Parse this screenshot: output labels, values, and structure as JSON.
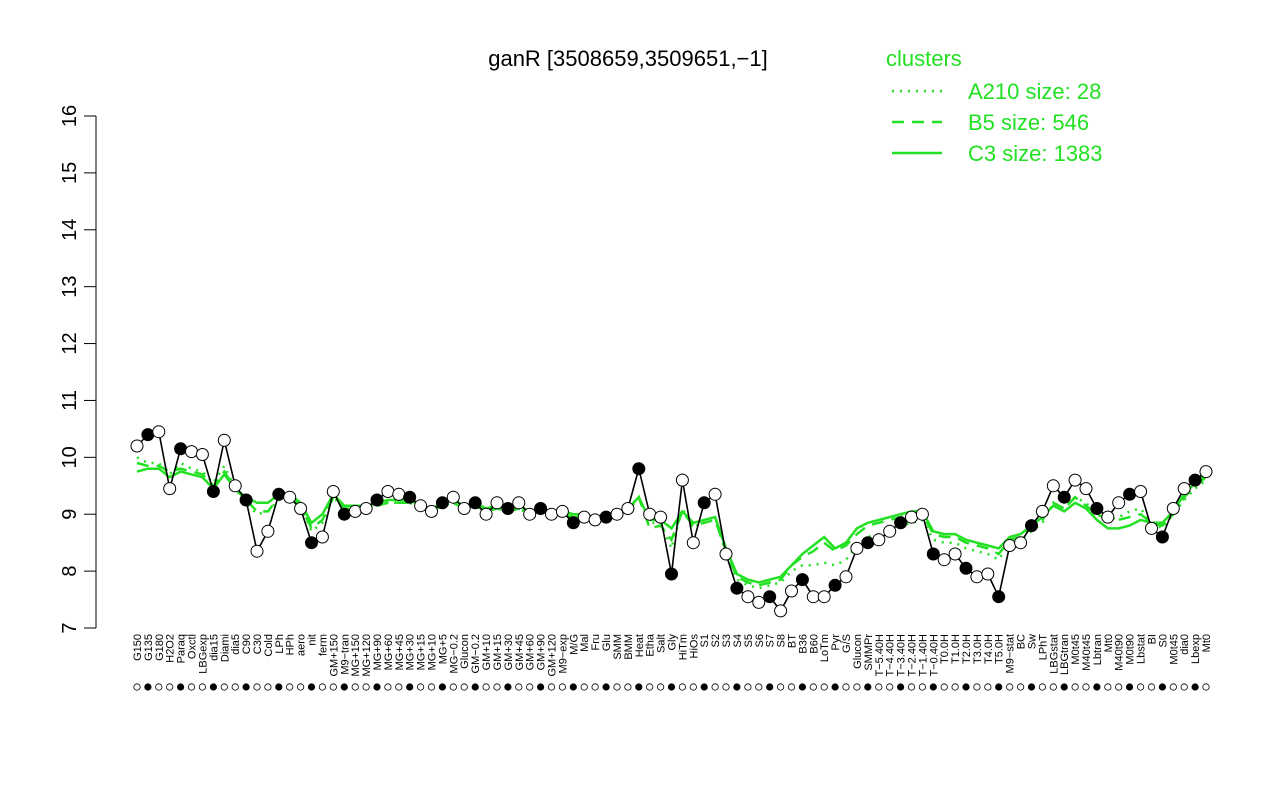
{
  "chart_data": {
    "type": "line",
    "title": "ganR [3508659,3509651,−1]",
    "xlabel": "",
    "ylabel": "",
    "ylim": [
      7,
      16
    ],
    "yticks": [
      7,
      8,
      9,
      10,
      11,
      12,
      13,
      14,
      15,
      16
    ],
    "grid": false,
    "legend": {
      "title": "clusters",
      "placement": "top-right",
      "entries": [
        {
          "label": "A210 size: 28",
          "style": "dotted"
        },
        {
          "label": "B5 size: 546",
          "style": "dashed"
        },
        {
          "label": "C3 size: 1383",
          "style": "solid"
        }
      ]
    },
    "colors": {
      "clusters": "#22e022",
      "gene_line": "#000000",
      "point_fill_a": "#ffffff",
      "point_fill_b": "#000000"
    },
    "x_labels": [
      "G150",
      "G135",
      "G180",
      "H2O2",
      "Paraq",
      "Oxctl",
      "LBGexp",
      "dia15",
      "Diami",
      "dia5",
      "C90",
      "C30",
      "Cold",
      "LPh",
      "HPh",
      "aero",
      "nit",
      "ferm",
      "GM+150",
      "M9−tran",
      "MG+150",
      "MG+120",
      "MG+90",
      "MG+60",
      "MG+45",
      "MG+30",
      "MG+15",
      "MG+10",
      "MG+5",
      "MG−0.2",
      "Glucon",
      "GM−0.2",
      "GM+10",
      "GM+15",
      "GM+30",
      "GM+45",
      "GM+60",
      "GM+90",
      "GM+120",
      "M9−exp",
      "M/G",
      "Mal",
      "Fru",
      "Glu",
      "SMM",
      "BMM",
      "Heat",
      "Etha",
      "Salt",
      "Gly",
      "HiTm",
      "HiOs",
      "S1",
      "S2",
      "S3",
      "S4",
      "S5",
      "S6",
      "S7",
      "S8",
      "BT",
      "B36",
      "B60",
      "LoTm",
      "Pyr",
      "G/S",
      "Glucon",
      "SMMPr",
      "T−5.40H",
      "T−4.40H",
      "T−3.40H",
      "T−2.40H",
      "T−1.40H",
      "T−0.40H",
      "T0.0H",
      "T1.0H",
      "T2.0H",
      "T3.0H",
      "T4.0H",
      "T5.0H",
      "M9−stat",
      "BC",
      "Sw",
      "LPhT",
      "LBGstat",
      "LBGtran",
      "M0t45",
      "M40t45",
      "Lbtran",
      "Mt0",
      "M40t90",
      "M0t90",
      "Lbstat",
      "BI",
      "S0",
      "M0t45",
      "dia0",
      "Lbexp",
      "Mt0"
    ],
    "series": [
      {
        "values": [
          10.2,
          10.4,
          10.45,
          9.45,
          10.15,
          10.1,
          10.05,
          9.4,
          10.3,
          9.5,
          9.25,
          8.35,
          8.7,
          9.35,
          9.3,
          9.1,
          8.5,
          8.6,
          9.4,
          9.0,
          9.05,
          9.1,
          9.25,
          9.4,
          9.35,
          9.3,
          9.15,
          9.05,
          9.2,
          9.3,
          9.1,
          9.2,
          9.0,
          9.2,
          9.1,
          9.2,
          9.0,
          9.1,
          9.0,
          9.05,
          8.85,
          8.95,
          8.9,
          8.95,
          9.0,
          9.1,
          9.8,
          9.0,
          8.95,
          7.95,
          9.6,
          8.5,
          9.2,
          9.35,
          8.3,
          7.7,
          7.55,
          7.45,
          7.55,
          7.3,
          7.65,
          7.85,
          7.55,
          7.55,
          7.75,
          7.9,
          8.4,
          8.5,
          8.55,
          8.7,
          8.85,
          8.95,
          9.0,
          8.3,
          8.2,
          8.3,
          8.05,
          7.9,
          7.95,
          7.55,
          8.45,
          8.5,
          8.8,
          9.05,
          9.5,
          9.3,
          9.6,
          9.45,
          9.1,
          8.95,
          9.2,
          9.35,
          9.4,
          8.75,
          8.6,
          9.1,
          9.45,
          9.6,
          9.75
        ]
      }
    ],
    "clusters": [
      {
        "label": "A210 size: 28",
        "values": [
          10.0,
          9.9,
          9.9,
          9.7,
          9.9,
          9.8,
          9.75,
          9.55,
          9.85,
          9.45,
          9.2,
          9.0,
          9.05,
          9.25,
          9.25,
          9.15,
          8.7,
          8.85,
          9.3,
          9.1,
          9.05,
          9.1,
          9.15,
          9.2,
          9.2,
          9.2,
          9.1,
          9.05,
          9.15,
          9.2,
          9.1,
          9.15,
          9.05,
          9.1,
          9.05,
          9.1,
          9.0,
          9.05,
          9.0,
          9.0,
          8.9,
          8.95,
          8.9,
          8.95,
          8.95,
          9.05,
          9.3,
          8.85,
          8.85,
          8.4,
          9.1,
          8.75,
          8.9,
          8.95,
          8.3,
          7.85,
          7.75,
          7.7,
          7.75,
          7.8,
          8.0,
          8.1,
          8.1,
          8.15,
          8.1,
          8.2,
          8.45,
          8.6,
          8.65,
          8.7,
          8.8,
          8.85,
          8.9,
          8.55,
          8.5,
          8.5,
          8.4,
          8.35,
          8.3,
          8.2,
          8.5,
          8.55,
          8.7,
          8.85,
          9.2,
          9.1,
          9.3,
          9.2,
          9.0,
          8.9,
          8.95,
          9.05,
          9.1,
          8.85,
          8.75,
          9.0,
          9.25,
          9.45,
          9.6
        ]
      },
      {
        "label": "B5 size: 546",
        "values": [
          9.9,
          9.85,
          9.85,
          9.75,
          9.8,
          9.75,
          9.7,
          9.5,
          9.75,
          9.45,
          9.25,
          9.05,
          9.05,
          9.3,
          9.3,
          9.15,
          8.75,
          8.9,
          9.3,
          9.1,
          9.1,
          9.1,
          9.15,
          9.2,
          9.2,
          9.2,
          9.1,
          9.05,
          9.15,
          9.2,
          9.1,
          9.15,
          9.05,
          9.1,
          9.05,
          9.1,
          9.0,
          9.05,
          9.0,
          9.0,
          8.95,
          8.95,
          8.9,
          8.95,
          8.95,
          9.05,
          9.3,
          8.75,
          8.8,
          8.55,
          9.05,
          8.8,
          8.85,
          8.9,
          8.35,
          7.9,
          7.8,
          7.75,
          7.8,
          7.85,
          8.1,
          8.25,
          8.35,
          8.5,
          8.35,
          8.45,
          8.65,
          8.8,
          8.85,
          8.9,
          8.95,
          9.0,
          9.0,
          8.65,
          8.6,
          8.6,
          8.5,
          8.45,
          8.4,
          8.3,
          8.55,
          8.6,
          8.75,
          8.9,
          9.2,
          9.1,
          9.3,
          9.15,
          9.0,
          8.9,
          8.9,
          8.95,
          9.0,
          8.85,
          8.8,
          9.0,
          9.3,
          9.5,
          9.65
        ]
      },
      {
        "label": "C3 size: 1383",
        "values": [
          9.75,
          9.8,
          9.8,
          9.65,
          9.75,
          9.7,
          9.65,
          9.45,
          9.7,
          9.45,
          9.3,
          9.2,
          9.2,
          9.35,
          9.35,
          9.2,
          8.85,
          9.0,
          9.35,
          9.15,
          9.15,
          9.15,
          9.2,
          9.25,
          9.25,
          9.25,
          9.15,
          9.1,
          9.2,
          9.25,
          9.15,
          9.2,
          9.1,
          9.15,
          9.1,
          9.15,
          9.05,
          9.1,
          9.05,
          9.05,
          9.0,
          9.0,
          8.95,
          9.0,
          9.0,
          9.1,
          9.3,
          8.9,
          8.9,
          8.75,
          9.05,
          8.85,
          8.9,
          8.95,
          8.4,
          7.95,
          7.85,
          7.8,
          7.85,
          7.9,
          8.1,
          8.3,
          8.45,
          8.6,
          8.4,
          8.5,
          8.75,
          8.85,
          8.9,
          8.95,
          9.0,
          9.05,
          9.05,
          8.7,
          8.65,
          8.65,
          8.55,
          8.5,
          8.45,
          8.4,
          8.6,
          8.65,
          8.8,
          8.95,
          9.15,
          9.05,
          9.2,
          9.1,
          8.9,
          8.75,
          8.75,
          8.8,
          8.9,
          8.85,
          8.85,
          9.05,
          9.35,
          9.55,
          9.7
        ]
      }
    ]
  }
}
